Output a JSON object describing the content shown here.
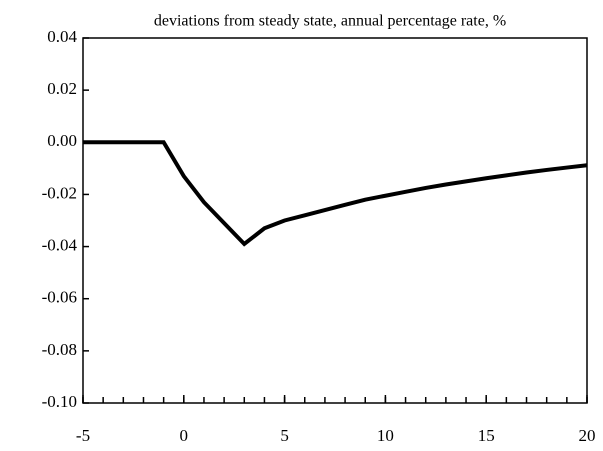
{
  "chart_data": {
    "type": "line",
    "title": "deviations from steady state, annual percentage rate, %",
    "x": [
      -5,
      -4,
      -3,
      -2,
      -1,
      0,
      1,
      2,
      3,
      4,
      5,
      6,
      7,
      8,
      9,
      10,
      11,
      12,
      13,
      14,
      15,
      16,
      17,
      18,
      19,
      20
    ],
    "series": [
      {
        "color": "#000000",
        "values": [
          0,
          0,
          0,
          0,
          0,
          -0.013,
          -0.023,
          -0.031,
          -0.039,
          -0.033,
          -0.03,
          -0.028,
          -0.026,
          -0.024,
          -0.022,
          -0.0205,
          -0.019,
          -0.0175,
          -0.0162,
          -0.015,
          -0.0138,
          -0.0127,
          -0.0116,
          -0.0106,
          -0.0097,
          -0.0088
        ]
      }
    ],
    "xlim": [
      -5,
      20
    ],
    "xticks": [
      -5,
      0,
      5,
      10,
      15,
      20
    ],
    "ylim": [
      -0.1,
      0.04
    ],
    "yticks": [
      {
        "value": -0.1,
        "label": "-0.10"
      },
      -0.08,
      -0.06,
      -0.04,
      -0.02,
      {
        "value": 0,
        "label": "0.00"
      },
      0.02,
      0.04
    ]
  }
}
